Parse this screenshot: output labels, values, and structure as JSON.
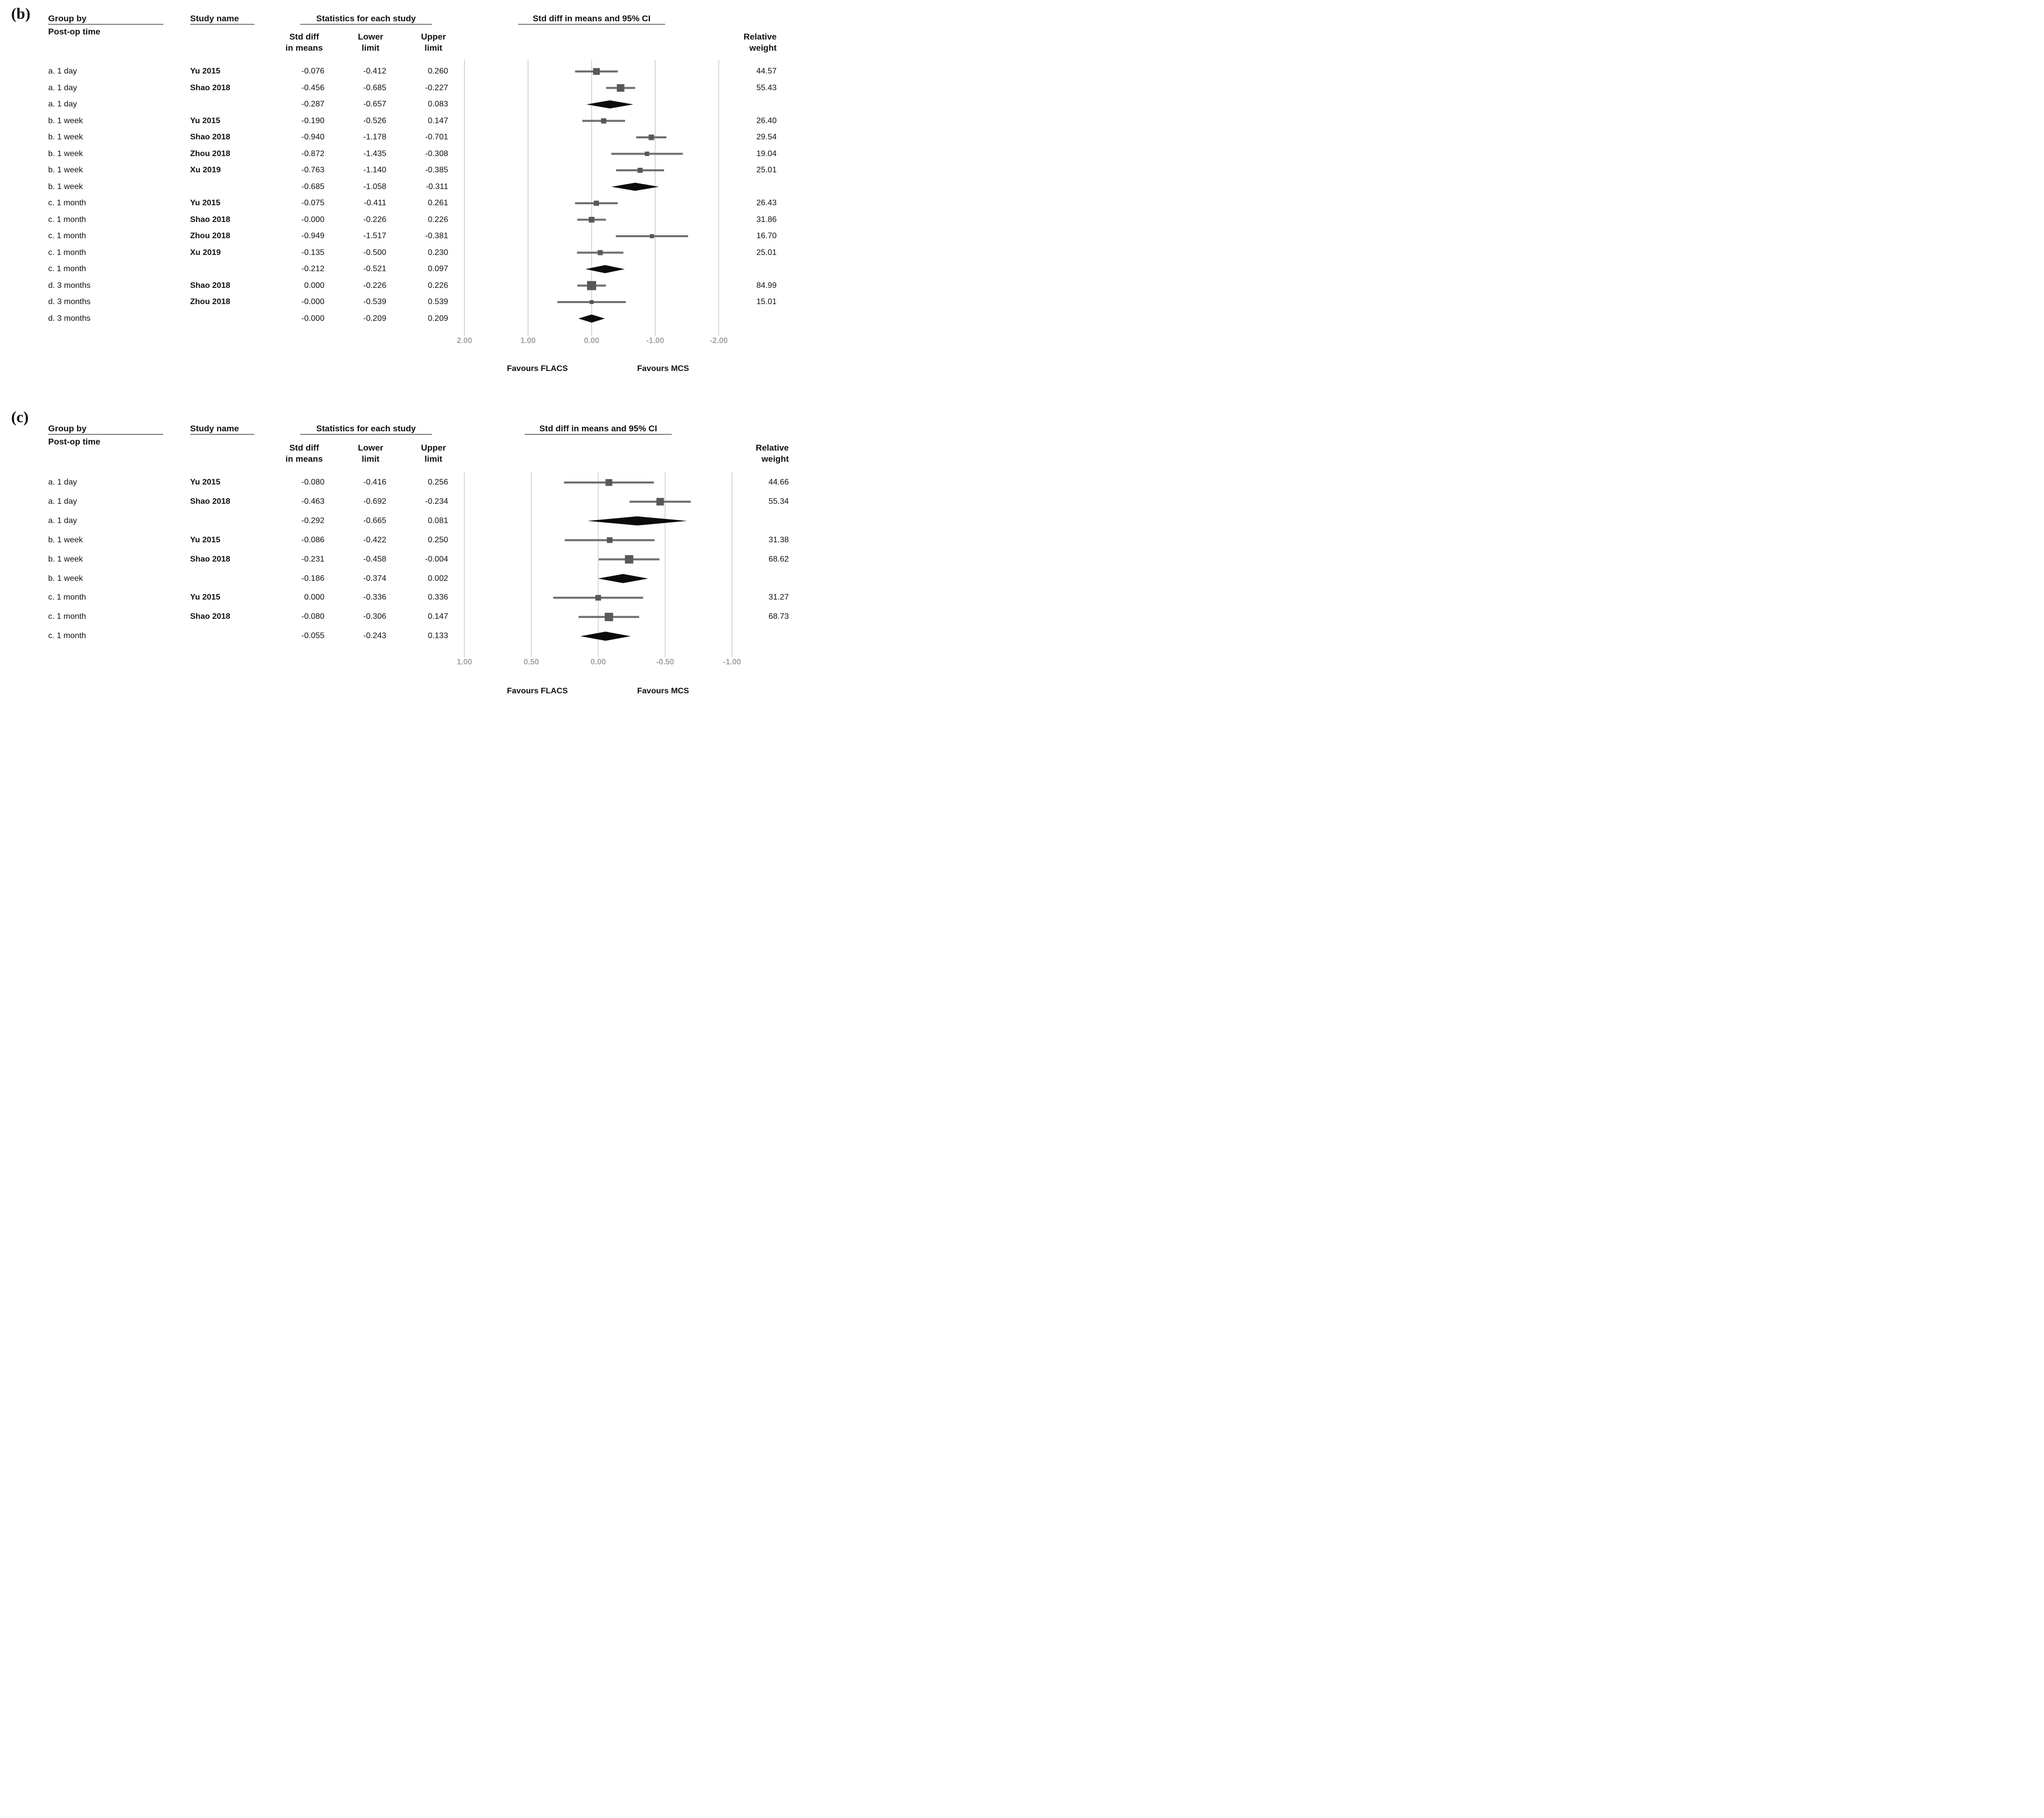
{
  "chart_data": [
    {
      "type": "forest",
      "panel_label": "(b)",
      "headers": {
        "group_by": "Group by",
        "post_op_time": "Post-op time",
        "study_name": "Study name",
        "statistics": "Statistics for each study",
        "std_diff": [
          "Std diff",
          "in means"
        ],
        "lower": [
          "Lower",
          "limit"
        ],
        "upper": [
          "Upper",
          "limit"
        ],
        "plot": "Std diff in means and 95% CI",
        "relative_weight": [
          "Relative",
          "weight"
        ]
      },
      "x_ticks": [
        "2.00",
        "1.00",
        "0.00",
        "-1.00",
        "-2.00"
      ],
      "axis_reversed": true,
      "favours_left": "Favours FLACS",
      "favours_right": "Favours MCS",
      "rows": [
        {
          "group": "a. 1 day",
          "study": "Yu 2015",
          "est": "-0.076",
          "lo": "-0.412",
          "hi": "0.260",
          "w": "44.57",
          "kind": "study"
        },
        {
          "group": "a. 1 day",
          "study": "Shao 2018",
          "est": "-0.456",
          "lo": "-0.685",
          "hi": "-0.227",
          "w": "55.43",
          "kind": "study"
        },
        {
          "group": "a. 1 day",
          "study": "",
          "est": "-0.287",
          "lo": "-0.657",
          "hi": "0.083",
          "w": "",
          "kind": "summary"
        },
        {
          "group": "b. 1 week",
          "study": "Yu 2015",
          "est": "-0.190",
          "lo": "-0.526",
          "hi": "0.147",
          "w": "26.40",
          "kind": "study"
        },
        {
          "group": "b. 1 week",
          "study": "Shao 2018",
          "est": "-0.940",
          "lo": "-1.178",
          "hi": "-0.701",
          "w": "29.54",
          "kind": "study"
        },
        {
          "group": "b. 1 week",
          "study": "Zhou 2018",
          "est": "-0.872",
          "lo": "-1.435",
          "hi": "-0.308",
          "w": "19.04",
          "kind": "study"
        },
        {
          "group": "b. 1 week",
          "study": "Xu 2019",
          "est": "-0.763",
          "lo": "-1.140",
          "hi": "-0.385",
          "w": "25.01",
          "kind": "study"
        },
        {
          "group": "b. 1 week",
          "study": "",
          "est": "-0.685",
          "lo": "-1.058",
          "hi": "-0.311",
          "w": "",
          "kind": "summary"
        },
        {
          "group": "c. 1 month",
          "study": "Yu 2015",
          "est": "-0.075",
          "lo": "-0.411",
          "hi": "0.261",
          "w": "26.43",
          "kind": "study"
        },
        {
          "group": "c. 1 month",
          "study": "Shao 2018",
          "est": "-0.000",
          "lo": "-0.226",
          "hi": "0.226",
          "w": "31.86",
          "kind": "study"
        },
        {
          "group": "c. 1 month",
          "study": "Zhou 2018",
          "est": "-0.949",
          "lo": "-1.517",
          "hi": "-0.381",
          "w": "16.70",
          "kind": "study"
        },
        {
          "group": "c. 1 month",
          "study": "Xu 2019",
          "est": "-0.135",
          "lo": "-0.500",
          "hi": "0.230",
          "w": "25.01",
          "kind": "study"
        },
        {
          "group": "c. 1 month",
          "study": "",
          "est": "-0.212",
          "lo": "-0.521",
          "hi": "0.097",
          "w": "",
          "kind": "summary"
        },
        {
          "group": "d. 3 months",
          "study": "Shao 2018",
          "est": "0.000",
          "lo": "-0.226",
          "hi": "0.226",
          "w": "84.99",
          "kind": "study"
        },
        {
          "group": "d. 3 months",
          "study": "Zhou 2018",
          "est": "-0.000",
          "lo": "-0.539",
          "hi": "0.539",
          "w": "15.01",
          "kind": "study"
        },
        {
          "group": "d. 3 months",
          "study": "",
          "est": "-0.000",
          "lo": "-0.209",
          "hi": "0.209",
          "w": "",
          "kind": "summary"
        }
      ]
    },
    {
      "type": "forest",
      "panel_label": "(c)",
      "headers": {
        "group_by": "Group by",
        "post_op_time": "Post-op time",
        "study_name": "Study name",
        "statistics": "Statistics for each study",
        "std_diff": [
          "Std diff",
          "in means"
        ],
        "lower": [
          "Lower",
          "limit"
        ],
        "upper": [
          "Upper",
          "limit"
        ],
        "plot": "Std diff in means and 95% CI",
        "relative_weight": [
          "Relative",
          "weight"
        ]
      },
      "x_ticks": [
        "1.00",
        "0.50",
        "0.00",
        "-0.50",
        "-1.00"
      ],
      "axis_reversed": true,
      "favours_left": "Favours FLACS",
      "favours_right": "Favours MCS",
      "rows": [
        {
          "group": "a. 1 day",
          "study": "Yu 2015",
          "est": "-0.080",
          "lo": "-0.416",
          "hi": "0.256",
          "w": "44.66",
          "kind": "study"
        },
        {
          "group": "a. 1 day",
          "study": "Shao 2018",
          "est": "-0.463",
          "lo": "-0.692",
          "hi": "-0.234",
          "w": "55.34",
          "kind": "study"
        },
        {
          "group": "a. 1 day",
          "study": "",
          "est": "-0.292",
          "lo": "-0.665",
          "hi": "0.081",
          "w": "",
          "kind": "summary"
        },
        {
          "group": "b. 1 week",
          "study": "Yu 2015",
          "est": "-0.086",
          "lo": "-0.422",
          "hi": "0.250",
          "w": "31.38",
          "kind": "study"
        },
        {
          "group": "b. 1 week",
          "study": "Shao 2018",
          "est": "-0.231",
          "lo": "-0.458",
          "hi": "-0.004",
          "w": "68.62",
          "kind": "study"
        },
        {
          "group": "b. 1 week",
          "study": "",
          "est": "-0.186",
          "lo": "-0.374",
          "hi": "0.002",
          "w": "",
          "kind": "summary"
        },
        {
          "group": "c. 1 month",
          "study": "Yu 2015",
          "est": "0.000",
          "lo": "-0.336",
          "hi": "0.336",
          "w": "31.27",
          "kind": "study"
        },
        {
          "group": "c. 1 month",
          "study": "Shao 2018",
          "est": "-0.080",
          "lo": "-0.306",
          "hi": "0.147",
          "w": "68.73",
          "kind": "study"
        },
        {
          "group": "c. 1 month",
          "study": "",
          "est": "-0.055",
          "lo": "-0.243",
          "hi": "0.133",
          "w": "",
          "kind": "summary"
        }
      ]
    }
  ],
  "styles": {
    "marker_color": "#585858",
    "ci_line_color": "#6f6f6f",
    "diamond_color": "#0b0b0b",
    "gridline_color": "#c5c5c5",
    "axis_label_color": "#a2a2a2"
  }
}
